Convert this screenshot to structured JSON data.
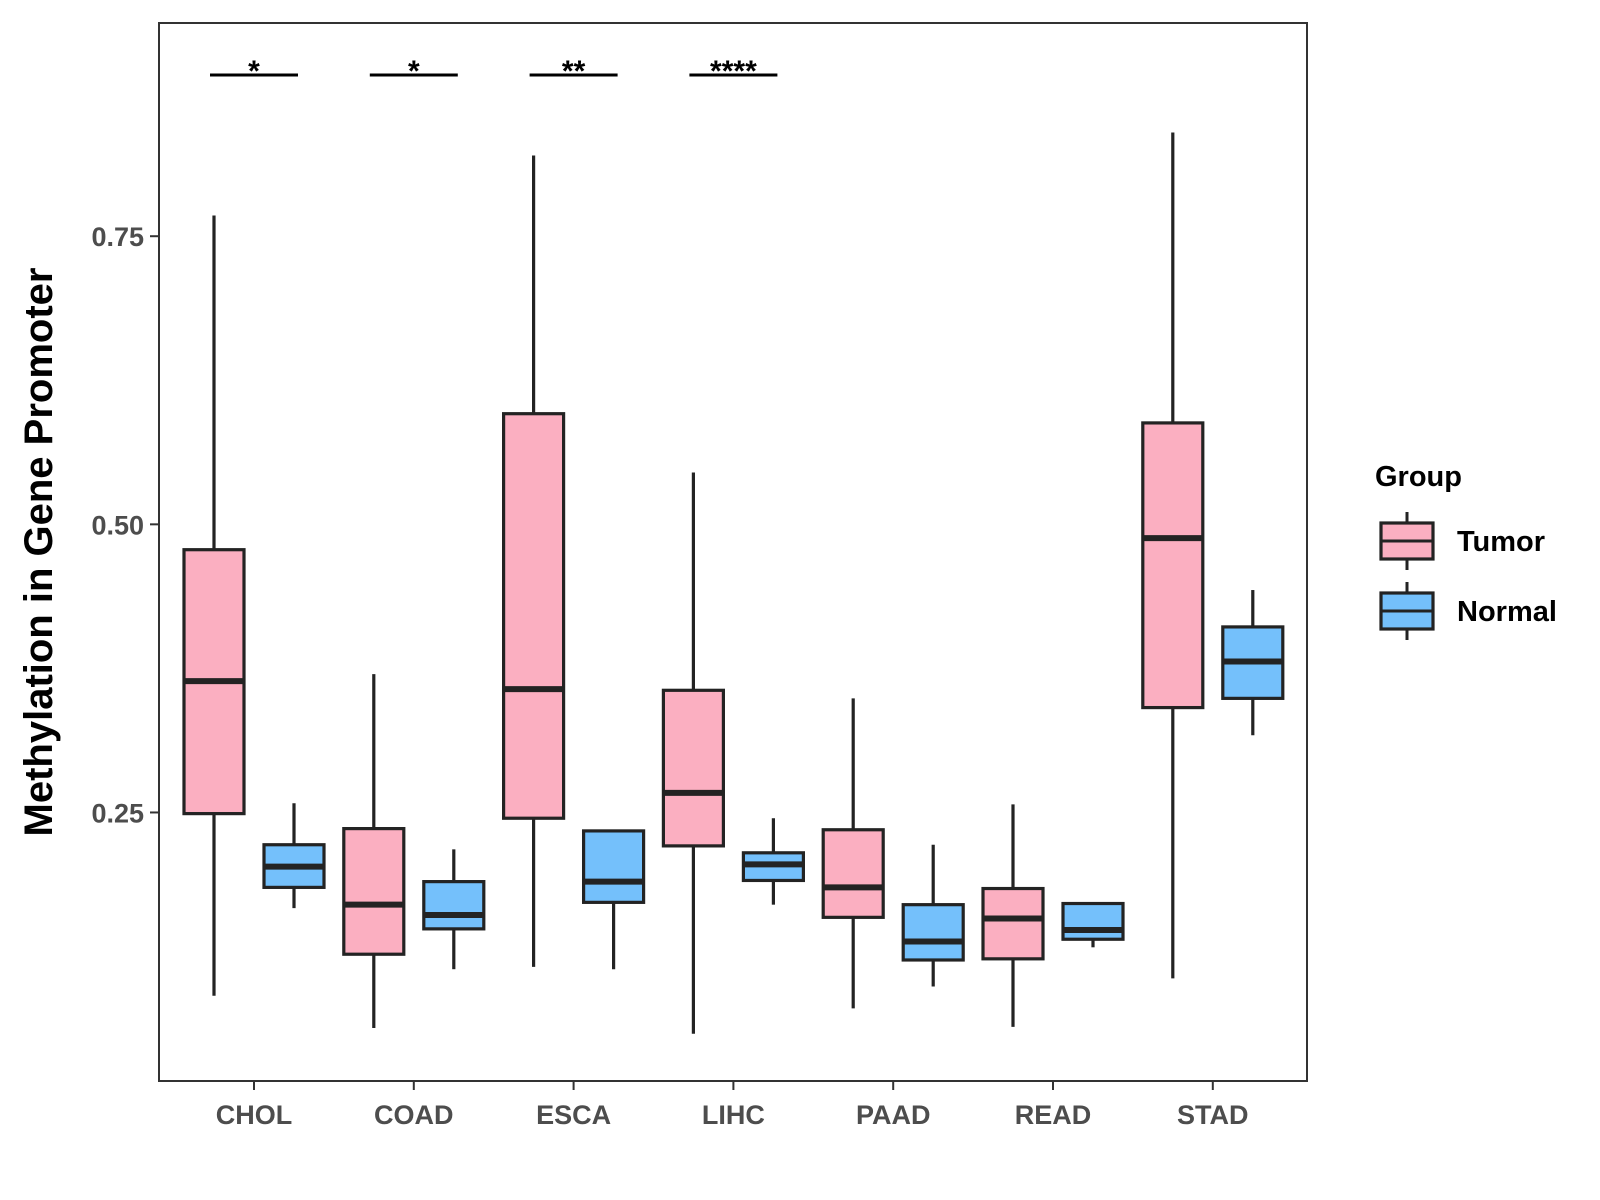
{
  "chart_data": {
    "type": "boxplot",
    "title": "",
    "xlabel": "",
    "ylabel": "Methylation in Gene Promoter",
    "ylim": [
      0.017,
      0.935
    ],
    "yticks": [
      0.25,
      0.5,
      0.75
    ],
    "ytick_labels": [
      "0.25",
      "0.50",
      "0.75"
    ],
    "grid": false,
    "legend": {
      "title": "Group",
      "position": "right",
      "entries": [
        {
          "name": "Tumor",
          "color": "#fbafc1"
        },
        {
          "name": "Normal",
          "color": "#74c0fb"
        }
      ]
    },
    "categories": [
      "CHOL",
      "COAD",
      "ESCA",
      "LIHC",
      "PAAD",
      "READ",
      "STAD"
    ],
    "series": [
      {
        "name": "Tumor",
        "color": "#fbafc1",
        "boxes": [
          {
            "min": 0.091,
            "q1": 0.249,
            "median": 0.364,
            "q3": 0.478,
            "max": 0.768
          },
          {
            "min": 0.063,
            "q1": 0.127,
            "median": 0.17,
            "q3": 0.236,
            "max": 0.37
          },
          {
            "min": 0.116,
            "q1": 0.245,
            "median": 0.357,
            "q3": 0.596,
            "max": 0.82
          },
          {
            "min": 0.058,
            "q1": 0.221,
            "median": 0.267,
            "q3": 0.356,
            "max": 0.545
          },
          {
            "min": 0.08,
            "q1": 0.159,
            "median": 0.185,
            "q3": 0.235,
            "max": 0.349
          },
          {
            "min": 0.064,
            "q1": 0.123,
            "median": 0.158,
            "q3": 0.184,
            "max": 0.257
          },
          {
            "min": 0.106,
            "q1": 0.341,
            "median": 0.488,
            "q3": 0.588,
            "max": 0.84
          }
        ]
      },
      {
        "name": "Normal",
        "color": "#74c0fb",
        "boxes": [
          {
            "min": 0.167,
            "q1": 0.185,
            "median": 0.203,
            "q3": 0.222,
            "max": 0.258
          },
          {
            "min": 0.114,
            "q1": 0.149,
            "median": 0.161,
            "q3": 0.19,
            "max": 0.218
          },
          {
            "min": 0.114,
            "q1": 0.172,
            "median": 0.19,
            "q3": 0.234,
            "max": 0.234
          },
          {
            "min": 0.17,
            "q1": 0.191,
            "median": 0.205,
            "q3": 0.215,
            "max": 0.245
          },
          {
            "min": 0.099,
            "q1": 0.122,
            "median": 0.138,
            "q3": 0.17,
            "max": 0.222
          },
          {
            "min": 0.133,
            "q1": 0.14,
            "median": 0.148,
            "q3": 0.171,
            "max": 0.171
          },
          {
            "min": 0.317,
            "q1": 0.349,
            "median": 0.381,
            "q3": 0.411,
            "max": 0.443
          }
        ]
      }
    ],
    "annotations": [
      {
        "category": "CHOL",
        "label": "*"
      },
      {
        "category": "COAD",
        "label": "*"
      },
      {
        "category": "ESCA",
        "label": "**"
      },
      {
        "category": "LIHC",
        "label": "****"
      }
    ]
  }
}
